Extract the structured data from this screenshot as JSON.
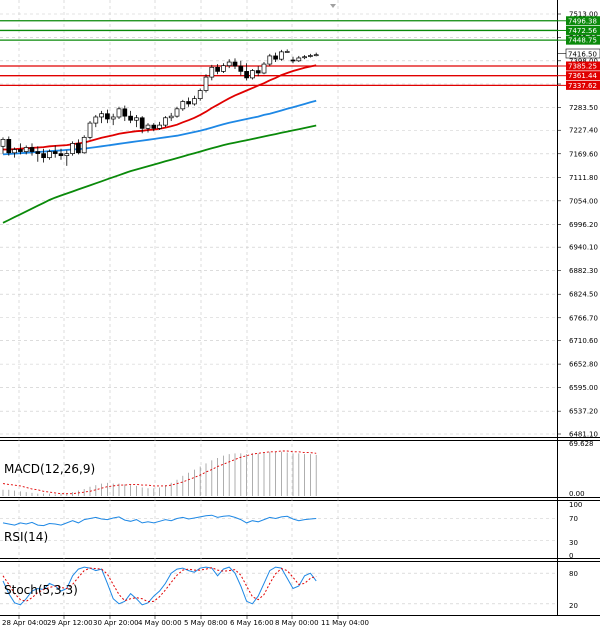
{
  "chart_data": {
    "type": "candlestick",
    "instrument_price_axis": {
      "ylim": [
        6481.1,
        7513.0
      ],
      "ticks": [
        7513.0,
        7455.2,
        7398.0,
        7341.0,
        7283.5,
        7227.4,
        7169.6,
        7111.8,
        7054.0,
        6996.2,
        6940.1,
        6882.3,
        6824.5,
        6766.7,
        6710.6,
        6652.8,
        6595.0,
        6537.2,
        6481.1
      ],
      "tick_labels": [
        "7513.00",
        "7455.20",
        "7398.00",
        "7341.00",
        "7283.50",
        "7227.40",
        "7169.60",
        "7111.80",
        "7054.00",
        "6996.20",
        "6940.10",
        "6882.30",
        "6824.50",
        "6766.70",
        "6710.60",
        "6652.80",
        "6595.00",
        "6537.20",
        "6481.10"
      ]
    },
    "current_price": "7416.50",
    "levels": [
      {
        "label": "7496.38",
        "value": 7496.38,
        "kind": "resistance",
        "color": "#0a8a0a"
      },
      {
        "label": "7472.56",
        "value": 7472.56,
        "kind": "resistance",
        "color": "#0a8a0a"
      },
      {
        "label": "7448.75",
        "value": 7448.75,
        "kind": "resistance",
        "color": "#0a8a0a"
      },
      {
        "label": "7385.25",
        "value": 7385.25,
        "kind": "support",
        "color": "#e00000"
      },
      {
        "label": "7361.44",
        "value": 7361.44,
        "kind": "support",
        "color": "#e00000"
      },
      {
        "label": "7337.62",
        "value": 7337.62,
        "kind": "support",
        "color": "#e00000"
      }
    ],
    "x_tick_labels": [
      "28 Apr 04:00",
      "29 Apr 12:00",
      "30 Apr 20:00",
      "4 May 00:00",
      "5 May 08:00",
      "6 May 16:00",
      "8 May 00:00",
      "11 May 04:00"
    ],
    "candles": [
      {
        "o": 7188,
        "h": 7210,
        "c": 7205,
        "l": 7170
      },
      {
        "o": 7205,
        "h": 7212,
        "c": 7172,
        "l": 7165
      },
      {
        "o": 7172,
        "h": 7185,
        "c": 7180,
        "l": 7160
      },
      {
        "o": 7180,
        "h": 7195,
        "c": 7175,
        "l": 7168
      },
      {
        "o": 7175,
        "h": 7190,
        "c": 7185,
        "l": 7168
      },
      {
        "o": 7185,
        "h": 7195,
        "c": 7175,
        "l": 7165
      },
      {
        "o": 7175,
        "h": 7188,
        "c": 7170,
        "l": 7150
      },
      {
        "o": 7170,
        "h": 7182,
        "c": 7160,
        "l": 7148
      },
      {
        "o": 7160,
        "h": 7180,
        "c": 7175,
        "l": 7155
      },
      {
        "o": 7175,
        "h": 7190,
        "c": 7170,
        "l": 7160
      },
      {
        "o": 7170,
        "h": 7182,
        "c": 7165,
        "l": 7155
      },
      {
        "o": 7165,
        "h": 7178,
        "c": 7170,
        "l": 7140
      },
      {
        "o": 7170,
        "h": 7200,
        "c": 7195,
        "l": 7165
      },
      {
        "o": 7195,
        "h": 7205,
        "c": 7172,
        "l": 7168
      },
      {
        "o": 7172,
        "h": 7215,
        "c": 7210,
        "l": 7170
      },
      {
        "o": 7210,
        "h": 7250,
        "c": 7245,
        "l": 7205
      },
      {
        "o": 7245,
        "h": 7265,
        "c": 7260,
        "l": 7235
      },
      {
        "o": 7260,
        "h": 7275,
        "c": 7268,
        "l": 7245
      },
      {
        "o": 7268,
        "h": 7278,
        "c": 7255,
        "l": 7245
      },
      {
        "o": 7255,
        "h": 7268,
        "c": 7260,
        "l": 7240
      },
      {
        "o": 7260,
        "h": 7285,
        "c": 7280,
        "l": 7255
      },
      {
        "o": 7280,
        "h": 7288,
        "c": 7262,
        "l": 7250
      },
      {
        "o": 7262,
        "h": 7275,
        "c": 7252,
        "l": 7245
      },
      {
        "o": 7252,
        "h": 7265,
        "c": 7258,
        "l": 7235
      },
      {
        "o": 7258,
        "h": 7262,
        "c": 7232,
        "l": 7220
      },
      {
        "o": 7232,
        "h": 7245,
        "c": 7240,
        "l": 7222
      },
      {
        "o": 7240,
        "h": 7245,
        "c": 7232,
        "l": 7225
      },
      {
        "o": 7232,
        "h": 7248,
        "c": 7240,
        "l": 7228
      },
      {
        "o": 7240,
        "h": 7262,
        "c": 7258,
        "l": 7235
      },
      {
        "o": 7258,
        "h": 7270,
        "c": 7262,
        "l": 7250
      },
      {
        "o": 7262,
        "h": 7285,
        "c": 7280,
        "l": 7258
      },
      {
        "o": 7280,
        "h": 7302,
        "c": 7298,
        "l": 7275
      },
      {
        "o": 7298,
        "h": 7308,
        "c": 7292,
        "l": 7285
      },
      {
        "o": 7292,
        "h": 7312,
        "c": 7305,
        "l": 7288
      },
      {
        "o": 7305,
        "h": 7330,
        "c": 7325,
        "l": 7300
      },
      {
        "o": 7325,
        "h": 7365,
        "c": 7358,
        "l": 7320
      },
      {
        "o": 7358,
        "h": 7388,
        "c": 7382,
        "l": 7350
      },
      {
        "o": 7382,
        "h": 7390,
        "c": 7372,
        "l": 7365
      },
      {
        "o": 7372,
        "h": 7392,
        "c": 7386,
        "l": 7368
      },
      {
        "o": 7386,
        "h": 7402,
        "c": 7395,
        "l": 7380
      },
      {
        "o": 7395,
        "h": 7404,
        "c": 7385,
        "l": 7378
      },
      {
        "o": 7385,
        "h": 7398,
        "c": 7372,
        "l": 7362
      },
      {
        "o": 7372,
        "h": 7392,
        "c": 7356,
        "l": 7350
      },
      {
        "o": 7356,
        "h": 7378,
        "c": 7374,
        "l": 7352
      },
      {
        "o": 7374,
        "h": 7385,
        "c": 7368,
        "l": 7360
      },
      {
        "o": 7368,
        "h": 7395,
        "c": 7390,
        "l": 7365
      },
      {
        "o": 7390,
        "h": 7415,
        "c": 7410,
        "l": 7385
      },
      {
        "o": 7410,
        "h": 7418,
        "c": 7402,
        "l": 7395
      },
      {
        "o": 7402,
        "h": 7425,
        "c": 7420,
        "l": 7398
      },
      {
        "o": 7420,
        "h": 7426,
        "c": 7421,
        "l": 7418
      },
      {
        "o": 7400,
        "h": 7408,
        "c": 7398,
        "l": 7392
      },
      {
        "o": 7398,
        "h": 7410,
        "c": 7405,
        "l": 7395
      },
      {
        "o": 7406,
        "h": 7412,
        "c": 7408,
        "l": 7402
      },
      {
        "o": 7409,
        "h": 7415,
        "c": 7411,
        "l": 7406
      },
      {
        "o": 7412,
        "h": 7418,
        "c": 7413,
        "l": 7409
      }
    ],
    "moving_averages": [
      {
        "color": "#e00000",
        "values": [
          7180,
          7180,
          7181,
          7182,
          7183,
          7184,
          7185,
          7186,
          7188,
          7189,
          7190,
          7191,
          7193,
          7195,
          7197,
          7201,
          7205,
          7209,
          7212,
          7215,
          7219,
          7221,
          7223,
          7225,
          7226,
          7228,
          7229,
          7231,
          7234,
          7237,
          7241,
          7247,
          7252,
          7258,
          7265,
          7273,
          7282,
          7290,
          7298,
          7306,
          7313,
          7319,
          7325,
          7331,
          7337,
          7343,
          7350,
          7356,
          7363,
          7368,
          7373,
          7377,
          7381,
          7384,
          7387
        ]
      },
      {
        "color": "#1e88e5",
        "values": [
          7168,
          7169,
          7170,
          7171,
          7172,
          7173,
          7174,
          7175,
          7176,
          7177,
          7178,
          7179,
          7180,
          7181,
          7182,
          7184,
          7186,
          7188,
          7190,
          7192,
          7194,
          7196,
          7198,
          7200,
          7202,
          7204,
          7206,
          7208,
          7210,
          7212,
          7214,
          7217,
          7220,
          7223,
          7226,
          7230,
          7234,
          7238,
          7242,
          7246,
          7249,
          7252,
          7255,
          7258,
          7261,
          7265,
          7268,
          7272,
          7276,
          7280,
          7284,
          7288,
          7292,
          7296,
          7300
        ]
      },
      {
        "color": "#0a8a0a",
        "values": [
          7000,
          7007,
          7014,
          7021,
          7028,
          7035,
          7042,
          7049,
          7056,
          7062,
          7067,
          7072,
          7077,
          7082,
          7087,
          7092,
          7097,
          7102,
          7107,
          7112,
          7117,
          7122,
          7127,
          7131,
          7135,
          7139,
          7143,
          7147,
          7151,
          7155,
          7159,
          7163,
          7167,
          7171,
          7175,
          7179,
          7183,
          7187,
          7191,
          7194,
          7197,
          7200,
          7203,
          7206,
          7209,
          7212,
          7215,
          7218,
          7221,
          7224,
          7227,
          7230,
          7233,
          7236,
          7239
        ]
      }
    ],
    "macd": {
      "label": "MACD(12,26,9)",
      "ticks": [
        "69.628",
        "0.00"
      ],
      "histogram": [
        8,
        8,
        7,
        6,
        5,
        4,
        3,
        3,
        3,
        2,
        3,
        3,
        5,
        7,
        9,
        12,
        14,
        16,
        17,
        16,
        16,
        15,
        14,
        13,
        11,
        10,
        10,
        11,
        14,
        17,
        21,
        26,
        30,
        34,
        38,
        42,
        46,
        49,
        52,
        54,
        55,
        55,
        54,
        55,
        55,
        56,
        57,
        57,
        57,
        56,
        55,
        55,
        54,
        54,
        53
      ],
      "signal": [
        16,
        15,
        14,
        13,
        11,
        9,
        8,
        6,
        5,
        4,
        3,
        3,
        3,
        4,
        5,
        6,
        8,
        10,
        12,
        13,
        14,
        14,
        15,
        15,
        14,
        14,
        13,
        13,
        13,
        14,
        16,
        18,
        21,
        24,
        27,
        31,
        34,
        38,
        41,
        44,
        47,
        50,
        52,
        54,
        55,
        56,
        57,
        57,
        58,
        58,
        57,
        57,
        56,
        56,
        55
      ]
    },
    "rsi": {
      "label": "RSI(14)",
      "ticks": [
        "100",
        "70",
        "30",
        "0"
      ],
      "values": [
        62,
        60,
        58,
        62,
        60,
        63,
        58,
        57,
        61,
        60,
        58,
        62,
        66,
        62,
        68,
        70,
        72,
        69,
        68,
        71,
        73,
        67,
        65,
        68,
        62,
        64,
        62,
        65,
        68,
        66,
        70,
        72,
        69,
        71,
        73,
        75,
        76,
        72,
        74,
        75,
        72,
        68,
        62,
        66,
        64,
        68,
        72,
        70,
        73,
        74,
        69,
        66,
        68,
        69,
        70
      ]
    },
    "stoch": {
      "label": "Stoch(5,3,3)",
      "ticks": [
        "80",
        "20"
      ],
      "k": [
        65,
        40,
        22,
        18,
        30,
        45,
        50,
        48,
        60,
        55,
        45,
        50,
        75,
        88,
        92,
        90,
        85,
        88,
        60,
        30,
        20,
        25,
        40,
        30,
        18,
        22,
        35,
        45,
        60,
        80,
        88,
        90,
        85,
        82,
        90,
        92,
        90,
        75,
        88,
        92,
        80,
        55,
        25,
        20,
        35,
        60,
        85,
        92,
        90,
        70,
        50,
        55,
        75,
        80,
        65
      ],
      "d": [
        75,
        58,
        40,
        28,
        25,
        32,
        42,
        48,
        52,
        55,
        52,
        50,
        58,
        72,
        85,
        90,
        89,
        88,
        78,
        58,
        38,
        26,
        30,
        32,
        30,
        24,
        25,
        34,
        47,
        62,
        76,
        86,
        88,
        86,
        86,
        88,
        91,
        86,
        84,
        85,
        87,
        76,
        55,
        34,
        28,
        38,
        60,
        79,
        89,
        85,
        72,
        58,
        60,
        70,
        74
      ]
    }
  }
}
